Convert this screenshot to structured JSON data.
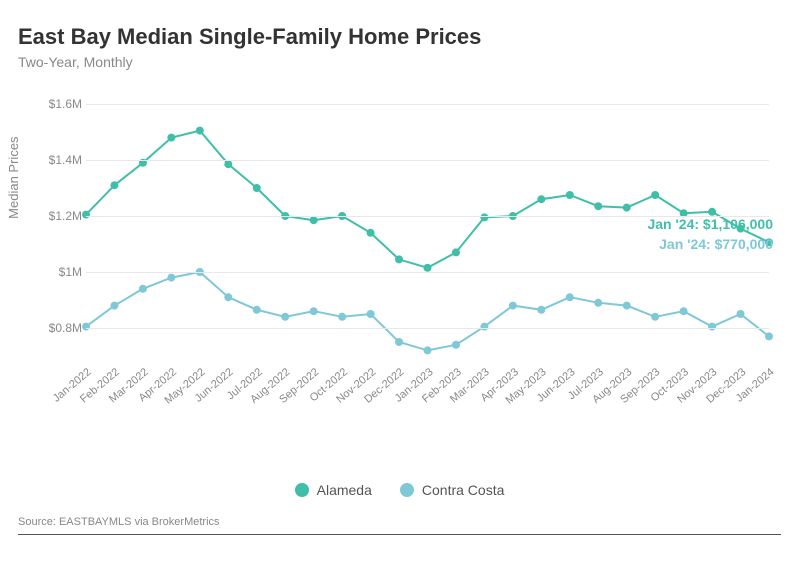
{
  "title": "East Bay Median Single-Family Home Prices",
  "subtitle": "Two-Year, Monthly",
  "ylabel": "Median Prices",
  "source": "Source:  EASTBAYMLS via BrokerMetrics",
  "y_axis": {
    "min": 650000,
    "max": 1650000,
    "ticks": [
      {
        "v": 800000,
        "label": "$0.8M"
      },
      {
        "v": 1000000,
        "label": "$1M"
      },
      {
        "v": 1200000,
        "label": "$1.2M"
      },
      {
        "v": 1400000,
        "label": "$1.4M"
      },
      {
        "v": 1600000,
        "label": "$1.6M"
      }
    ]
  },
  "x_labels": [
    "Jan-2022",
    "Feb-2022",
    "Mar-2022",
    "Apr-2022",
    "May-2022",
    "Jun-2022",
    "Jul-2022",
    "Aug-2022",
    "Sep-2022",
    "Oct-2022",
    "Nov-2022",
    "Dec-2022",
    "Jan-2023",
    "Feb-2023",
    "Mar-2023",
    "Apr-2023",
    "May-2023",
    "Jun-2023",
    "Jul-2023",
    "Aug-2023",
    "Sep-2023",
    "Oct-2023",
    "Nov-2023",
    "Dec-2023",
    "Jan-2024"
  ],
  "series": [
    {
      "name": "Alameda",
      "color": "#3fbfa8",
      "values": [
        1205000,
        1310000,
        1390000,
        1480000,
        1505000,
        1385000,
        1300000,
        1200000,
        1185000,
        1200000,
        1140000,
        1045000,
        1015000,
        1070000,
        1195000,
        1200000,
        1260000,
        1275000,
        1235000,
        1230000,
        1275000,
        1210000,
        1215000,
        1155000,
        1106000
      ],
      "callout": {
        "label": "Jan '24: $1,106,000",
        "index": 24,
        "dy": -4
      }
    },
    {
      "name": "Contra Costa",
      "color": "#7fc8d6",
      "values": [
        805000,
        880000,
        940000,
        980000,
        1000000,
        910000,
        865000,
        840000,
        860000,
        840000,
        850000,
        750000,
        720000,
        740000,
        805000,
        880000,
        865000,
        910000,
        890000,
        880000,
        840000,
        860000,
        805000,
        850000,
        770000
      ],
      "callout": {
        "label": "Jan '24: $770,000",
        "index": 24,
        "dy": -78
      }
    }
  ],
  "colors": {
    "grid": "#e8e8e8",
    "text_muted": "#888888",
    "background": "#ffffff"
  },
  "marker_radius": 4,
  "line_width": 2,
  "legend": [
    {
      "label": "Alameda",
      "color": "#3fbfa8"
    },
    {
      "label": "Contra Costa",
      "color": "#7fc8d6"
    }
  ]
}
